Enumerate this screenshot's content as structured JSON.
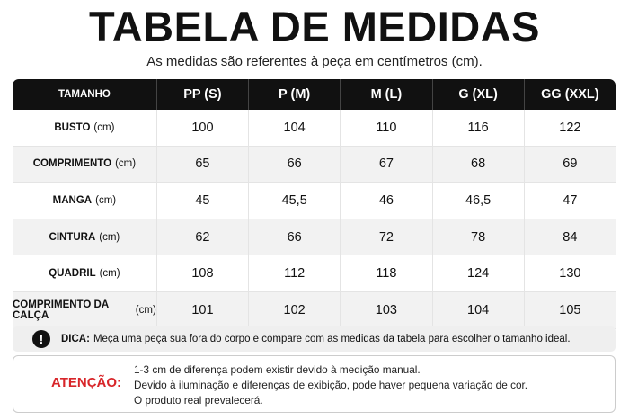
{
  "header": {
    "title": "TABELA DE MEDIDAS",
    "subtitle": "As medidas são referentes à peça em centímetros (cm)."
  },
  "table": {
    "columns": [
      "TAMANHO",
      "PP (S)",
      "P (M)",
      "M (L)",
      "G (XL)",
      "GG (XXL)"
    ],
    "rows": [
      {
        "label": "BUSTO",
        "unit": "(cm)",
        "values": [
          "100",
          "104",
          "110",
          "116",
          "122"
        ]
      },
      {
        "label": "COMPRIMENTO",
        "unit": "(cm)",
        "values": [
          "65",
          "66",
          "67",
          "68",
          "69"
        ]
      },
      {
        "label": "MANGA",
        "unit": "(cm)",
        "values": [
          "45",
          "45,5",
          "46",
          "46,5",
          "47"
        ]
      },
      {
        "label": "CINTURA",
        "unit": "(cm)",
        "values": [
          "62",
          "66",
          "72",
          "78",
          "84"
        ]
      },
      {
        "label": "QUADRIL",
        "unit": "(cm)",
        "values": [
          "108",
          "112",
          "118",
          "124",
          "130"
        ]
      },
      {
        "label": "COMPRIMENTO DA CALÇA",
        "unit": "(cm)",
        "values": [
          "101",
          "102",
          "103",
          "104",
          "105"
        ]
      }
    ]
  },
  "tip": {
    "icon": "!",
    "label": "DICA:",
    "text": "Meça uma peça sua fora do corpo e compare com as medidas da tabela para escolher o tamanho ideal."
  },
  "warning": {
    "label": "ATENÇÃO:",
    "lines": [
      "1-3 cm de diferença podem existir devido à medição manual.",
      "Devido à iluminação e diferenças de exibição, pode haver pequena variação de cor.",
      "O produto real prevalecerá."
    ]
  }
}
